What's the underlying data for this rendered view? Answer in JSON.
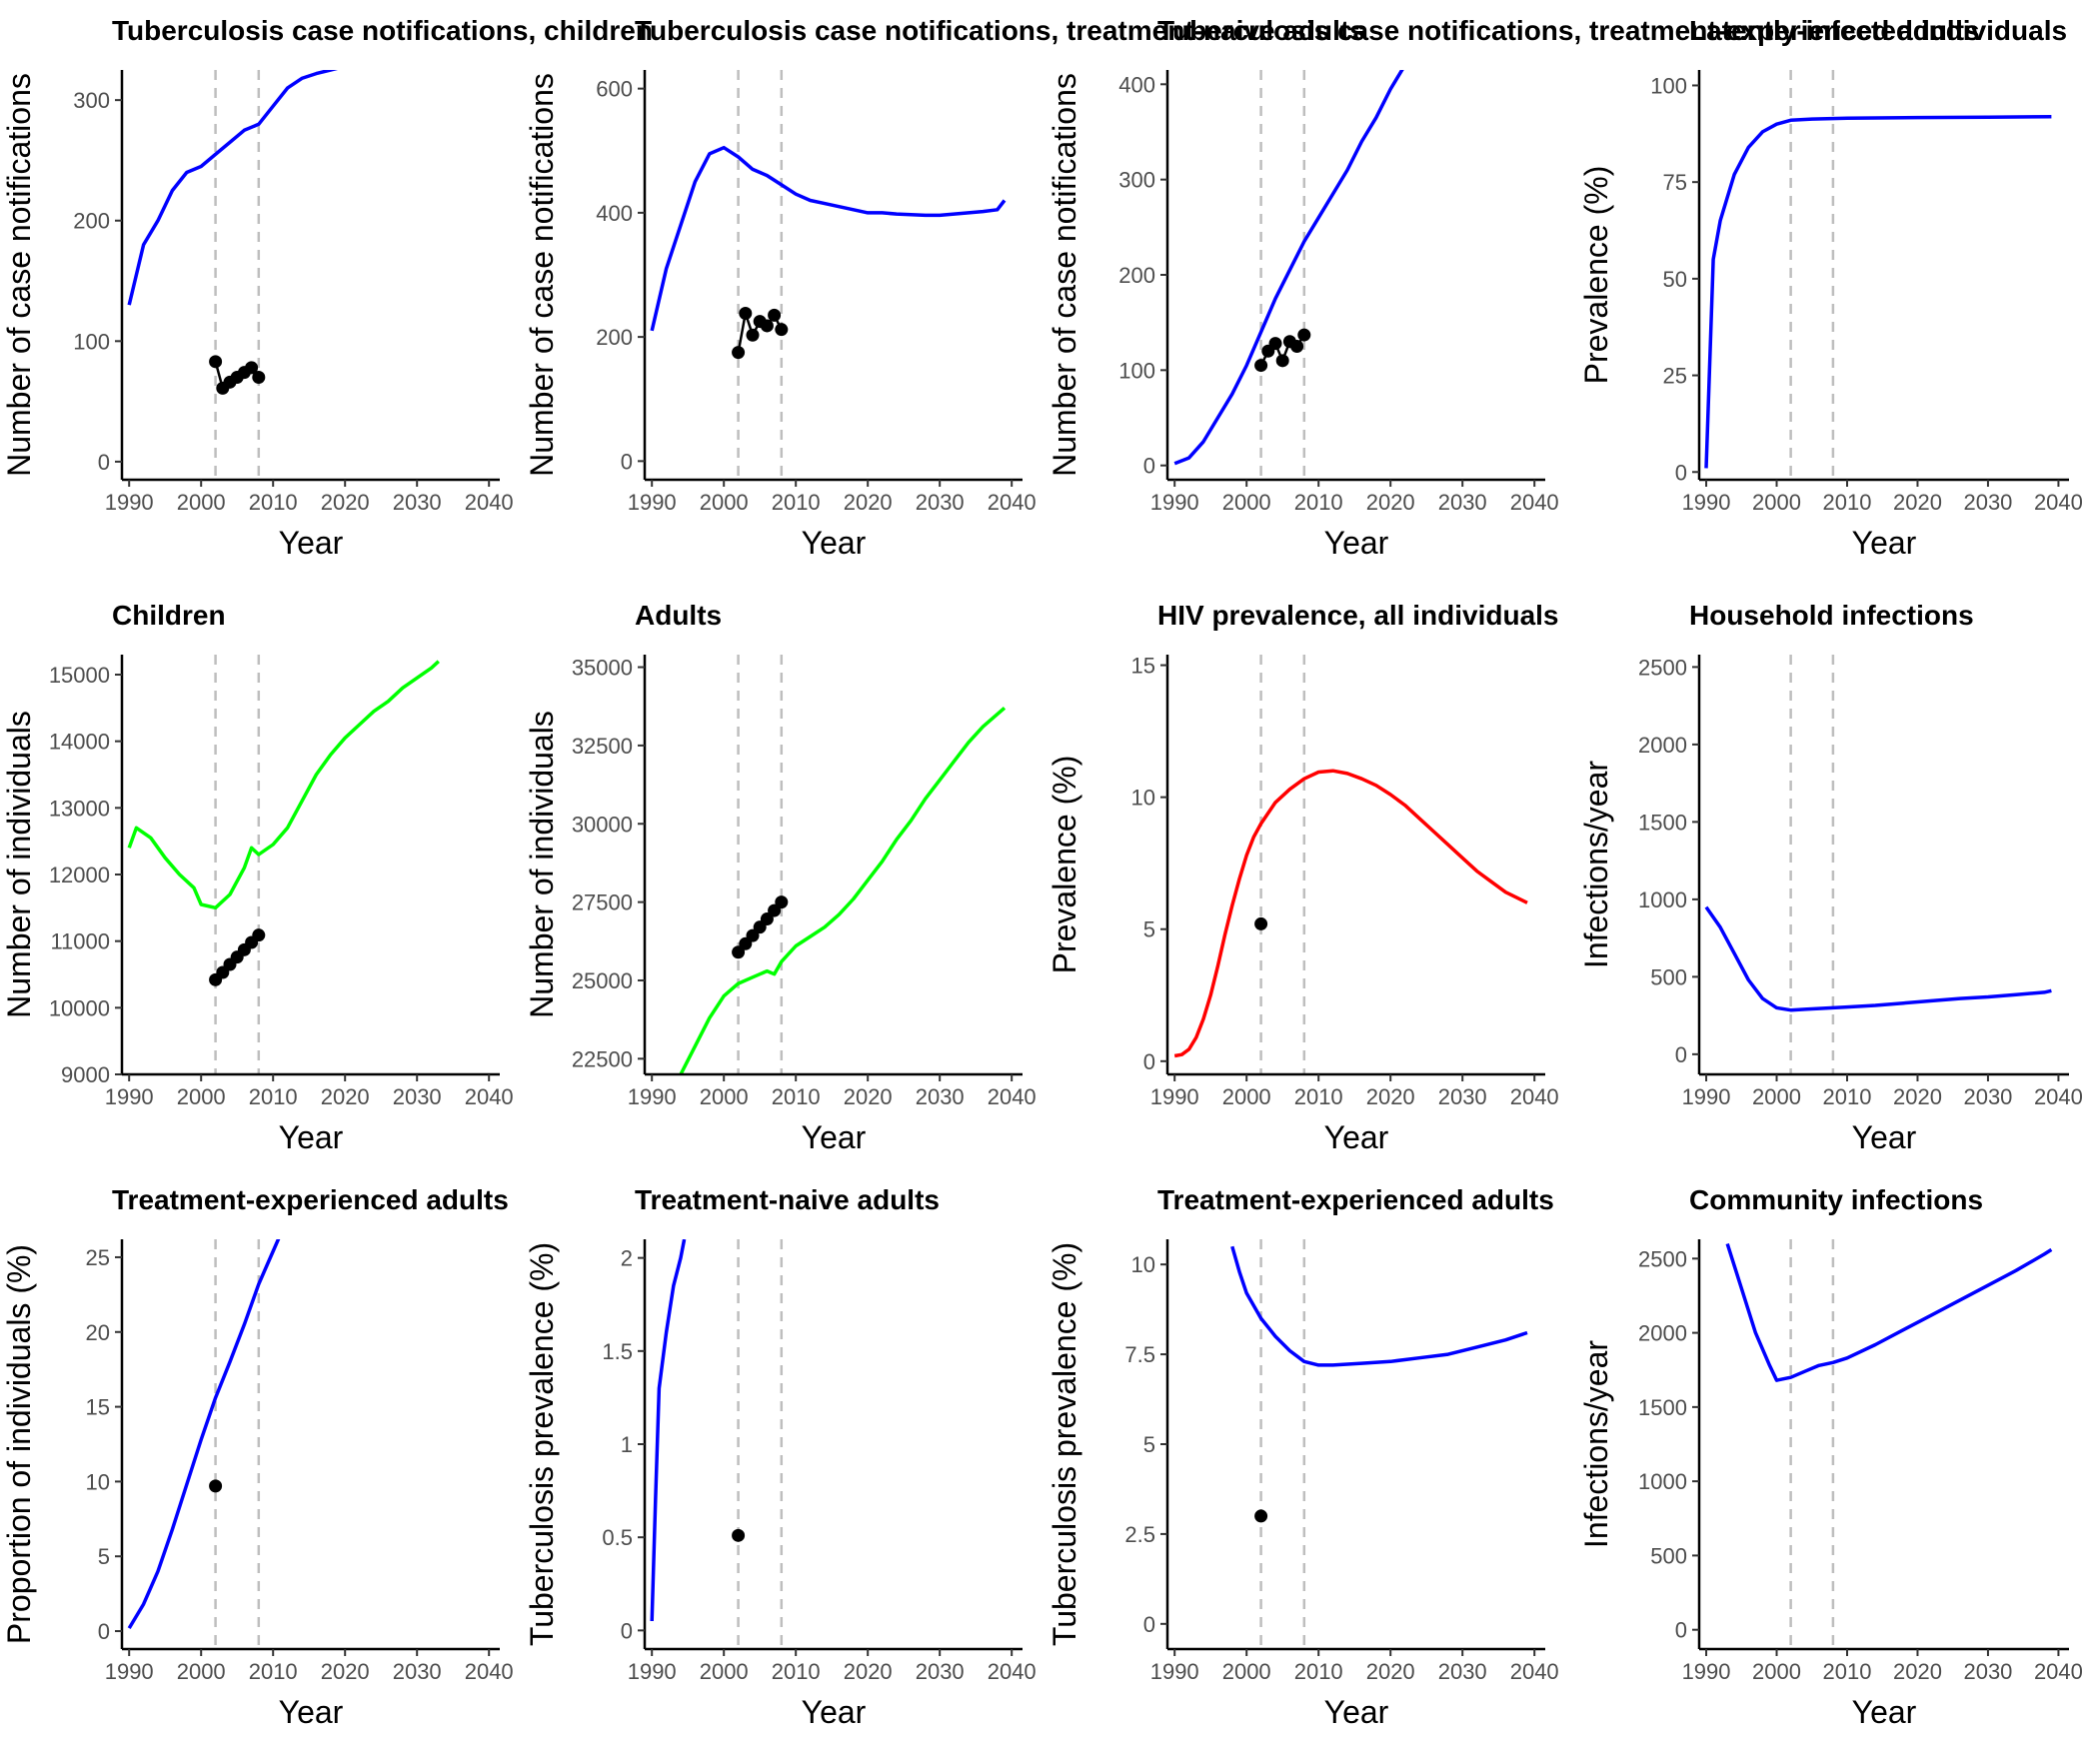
{
  "chart_data": [
    {
      "type": "line",
      "title": "Tuberculosis case notifications, children",
      "xlabel": "Year",
      "ylabel": "Number of case notifications",
      "xlim": [
        1990,
        2040
      ],
      "ylim": [
        0,
        300
      ],
      "xticks": [
        1990,
        2000,
        2010,
        2020,
        2030,
        2040
      ],
      "yticks": [
        0,
        100,
        200,
        300
      ],
      "vlines": [
        2002,
        2008
      ],
      "series_color": "#0000ff",
      "series": [
        {
          "x": [
            1990,
            1992,
            1994,
            1996,
            1998,
            2000,
            2002,
            2004,
            2006,
            2008,
            2010,
            2012,
            2014,
            2016,
            2018,
            2020,
            2022
          ],
          "y": [
            130,
            180,
            200,
            225,
            240,
            245,
            255,
            265,
            275,
            280,
            295,
            310,
            318,
            322,
            325,
            328,
            330
          ]
        }
      ],
      "observed": {
        "x": [
          2002,
          2003,
          2004,
          2005,
          2006,
          2007,
          2008
        ],
        "y": [
          83,
          61,
          66,
          70,
          74,
          78,
          70
        ]
      }
    },
    {
      "type": "line",
      "title": "Tuberculosis case notifications, treatment-naive adults",
      "xlabel": "Year",
      "ylabel": "Number of case notifications",
      "xlim": [
        1990,
        2040
      ],
      "ylim": [
        0,
        600
      ],
      "xticks": [
        1990,
        2000,
        2010,
        2020,
        2030,
        2040
      ],
      "yticks": [
        0,
        200,
        400,
        600
      ],
      "vlines": [
        2002,
        2008
      ],
      "series_color": "#0000ff",
      "series": [
        {
          "x": [
            1990,
            1992,
            1994,
            1996,
            1998,
            2000,
            2002,
            2004,
            2006,
            2008,
            2010,
            2012,
            2014,
            2016,
            2018,
            2020,
            2022,
            2024,
            2026,
            2028,
            2030,
            2032,
            2034,
            2036,
            2038,
            2039
          ],
          "y": [
            210,
            310,
            380,
            450,
            495,
            505,
            490,
            470,
            460,
            445,
            430,
            420,
            415,
            410,
            405,
            400,
            400,
            398,
            397,
            396,
            396,
            398,
            400,
            402,
            405,
            420
          ]
        }
      ],
      "observed": {
        "x": [
          2002,
          2003,
          2004,
          2005,
          2006,
          2007,
          2008
        ],
        "y": [
          175,
          238,
          203,
          225,
          218,
          235,
          212
        ]
      }
    },
    {
      "type": "line",
      "title": "Tuberculosis case notifications, treatment-experienced adults",
      "xlabel": "Year",
      "ylabel": "Number of case notifications",
      "xlim": [
        1990,
        2040
      ],
      "ylim": [
        0,
        400
      ],
      "xticks": [
        1990,
        2000,
        2010,
        2020,
        2030,
        2040
      ],
      "yticks": [
        0,
        100,
        200,
        300,
        400
      ],
      "vlines": [
        2002,
        2008
      ],
      "series_color": "#0000ff",
      "series": [
        {
          "x": [
            1990,
            1992,
            1994,
            1996,
            1998,
            2000,
            2002,
            2004,
            2006,
            2008,
            2010,
            2012,
            2014,
            2016,
            2018,
            2020,
            2022,
            2023
          ],
          "y": [
            2,
            8,
            25,
            50,
            75,
            105,
            140,
            175,
            205,
            235,
            260,
            285,
            310,
            340,
            365,
            395,
            420,
            430
          ]
        }
      ],
      "observed": {
        "x": [
          2002,
          2003,
          2004,
          2005,
          2006,
          2007,
          2008
        ],
        "y": [
          105,
          120,
          128,
          110,
          130,
          125,
          137
        ]
      }
    },
    {
      "type": "line",
      "title": "Latently-infected individuals",
      "xlabel": "Year",
      "ylabel": "Prevalence (%)",
      "xlim": [
        1990,
        2040
      ],
      "ylim": [
        0,
        100
      ],
      "xticks": [
        1990,
        2000,
        2010,
        2020,
        2030,
        2040
      ],
      "yticks": [
        0,
        25,
        50,
        75,
        100
      ],
      "vlines": [
        2002,
        2008
      ],
      "series_color": "#0000ff",
      "series": [
        {
          "x": [
            1990,
            1991,
            1992,
            1994,
            1996,
            1998,
            2000,
            2002,
            2005,
            2010,
            2020,
            2030,
            2039
          ],
          "y": [
            1,
            55,
            65,
            77,
            84,
            88,
            90,
            91,
            91.3,
            91.5,
            91.7,
            91.8,
            91.9
          ]
        }
      ],
      "observed": {
        "x": [],
        "y": []
      }
    },
    {
      "type": "line",
      "title": "Children",
      "xlabel": "Year",
      "ylabel": "Number of individuals",
      "xlim": [
        1990,
        2040
      ],
      "ylim": [
        9000,
        15000
      ],
      "xticks": [
        1990,
        2000,
        2010,
        2020,
        2030,
        2040
      ],
      "yticks": [
        9000,
        10000,
        11000,
        12000,
        13000,
        14000,
        15000
      ],
      "vlines": [
        2002,
        2008
      ],
      "series_color": "#00ff00",
      "series": [
        {
          "x": [
            1990,
            1991,
            1993,
            1995,
            1997,
            1999,
            2000,
            2002,
            2004,
            2006,
            2007,
            2008,
            2010,
            2012,
            2014,
            2016,
            2018,
            2020,
            2022,
            2024,
            2026,
            2028,
            2030,
            2032,
            2033
          ],
          "y": [
            12400,
            12700,
            12550,
            12250,
            12000,
            11800,
            11550,
            11500,
            11700,
            12100,
            12400,
            12300,
            12450,
            12700,
            13100,
            13500,
            13800,
            14050,
            14250,
            14450,
            14600,
            14800,
            14950,
            15100,
            15200
          ]
        }
      ],
      "observed": {
        "x": [
          2002,
          2003,
          2004,
          2005,
          2006,
          2007,
          2008
        ],
        "y": [
          10420,
          10530,
          10650,
          10760,
          10870,
          10980,
          11090
        ]
      }
    },
    {
      "type": "line",
      "title": "Adults",
      "xlabel": "Year",
      "ylabel": "Number of individuals",
      "xlim": [
        1990,
        2040
      ],
      "ylim": [
        22000,
        35000
      ],
      "xticks": [
        1990,
        2000,
        2010,
        2020,
        2030,
        2040
      ],
      "yticks": [
        22500,
        25000,
        27500,
        30000,
        32500,
        35000
      ],
      "vlines": [
        2002,
        2008
      ],
      "series_color": "#00ff00",
      "series": [
        {
          "x": [
            1994,
            1996,
            1998,
            2000,
            2002,
            2004,
            2006,
            2007,
            2008,
            2010,
            2012,
            2014,
            2016,
            2018,
            2020,
            2022,
            2024,
            2026,
            2028,
            2030,
            2032,
            2034,
            2036,
            2038,
            2039
          ],
          "y": [
            22000,
            22900,
            23800,
            24500,
            24900,
            25100,
            25300,
            25200,
            25600,
            26100,
            26400,
            26700,
            27100,
            27600,
            28200,
            28800,
            29500,
            30100,
            30800,
            31400,
            32000,
            32600,
            33100,
            33500,
            33700
          ]
        }
      ],
      "observed": {
        "x": [
          2002,
          2003,
          2004,
          2005,
          2006,
          2007,
          2008
        ],
        "y": [
          25900,
          26170,
          26430,
          26700,
          26960,
          27230,
          27500
        ]
      }
    },
    {
      "type": "line",
      "title": "HIV prevalence, all individuals",
      "xlabel": "Year",
      "ylabel": "Prevalence (%)",
      "xlim": [
        1990,
        2040
      ],
      "ylim": [
        0,
        15
      ],
      "xticks": [
        1990,
        2000,
        2010,
        2020,
        2030,
        2040
      ],
      "yticks": [
        0,
        5,
        10,
        15
      ],
      "vlines": [
        2002,
        2008
      ],
      "series_color": "#ff0000",
      "series": [
        {
          "x": [
            1990,
            1991,
            1992,
            1993,
            1994,
            1995,
            1996,
            1997,
            1998,
            1999,
            2000,
            2001,
            2002,
            2004,
            2006,
            2008,
            2010,
            2012,
            2014,
            2016,
            2018,
            2020,
            2022,
            2024,
            2026,
            2028,
            2030,
            2032,
            2034,
            2036,
            2039
          ],
          "y": [
            0.2,
            0.25,
            0.45,
            0.9,
            1.6,
            2.5,
            3.6,
            4.8,
            5.9,
            6.9,
            7.8,
            8.5,
            9.0,
            9.8,
            10.3,
            10.7,
            10.95,
            11.0,
            10.9,
            10.7,
            10.45,
            10.1,
            9.7,
            9.2,
            8.7,
            8.2,
            7.7,
            7.2,
            6.8,
            6.4,
            6.0
          ]
        }
      ],
      "observed": {
        "x": [
          2002
        ],
        "y": [
          5.2
        ]
      }
    },
    {
      "type": "line",
      "title": "Household infections",
      "xlabel": "Year",
      "ylabel": "Infections/year",
      "xlim": [
        1990,
        2040
      ],
      "ylim": [
        0,
        2500
      ],
      "xticks": [
        1990,
        2000,
        2010,
        2020,
        2030,
        2040
      ],
      "yticks": [
        0,
        500,
        1000,
        1500,
        2000,
        2500
      ],
      "vlines": [
        2002,
        2008
      ],
      "series_color": "#0000ff",
      "series": [
        {
          "x": [
            1990,
            1992,
            1994,
            1996,
            1998,
            2000,
            2002,
            2004,
            2006,
            2008,
            2010,
            2014,
            2018,
            2022,
            2026,
            2030,
            2034,
            2038,
            2039
          ],
          "y": [
            950,
            820,
            650,
            480,
            360,
            300,
            285,
            290,
            295,
            300,
            305,
            315,
            330,
            345,
            360,
            370,
            385,
            400,
            410
          ]
        }
      ],
      "observed": {
        "x": [],
        "y": []
      }
    },
    {
      "type": "line",
      "title": "Treatment-experienced adults",
      "xlabel": "Year",
      "ylabel": "Proportion of individuals (%)",
      "xlim": [
        1990,
        2040
      ],
      "ylim": [
        0,
        25
      ],
      "xticks": [
        1990,
        2000,
        2010,
        2020,
        2030,
        2040
      ],
      "yticks": [
        0,
        5,
        10,
        15,
        20,
        25
      ],
      "vlines": [
        2002,
        2008
      ],
      "series_color": "#0000ff",
      "series": [
        {
          "x": [
            1990,
            1992,
            1994,
            1996,
            1998,
            2000,
            2002,
            2004,
            2006,
            2008,
            2010,
            2011
          ],
          "y": [
            0.2,
            1.8,
            4.0,
            6.8,
            9.8,
            12.8,
            15.6,
            18.0,
            20.5,
            23.2,
            25.4,
            26.5
          ]
        }
      ],
      "observed": {
        "x": [
          2002
        ],
        "y": [
          9.7
        ]
      }
    },
    {
      "type": "line",
      "title": "Treatment-naive adults",
      "xlabel": "Year",
      "ylabel": "Tuberculosis prevalence (%)",
      "xlim": [
        1990,
        2040
      ],
      "ylim": [
        0,
        2
      ],
      "xticks": [
        1990,
        2000,
        2010,
        2020,
        2030,
        2040
      ],
      "yticks": [
        0.0,
        0.5,
        1.0,
        1.5,
        2.0
      ],
      "vlines": [
        2002,
        2008
      ],
      "series_color": "#0000ff",
      "series": [
        {
          "x": [
            1990,
            1990.5,
            1991,
            1992,
            1993,
            1994,
            1994.5
          ],
          "y": [
            0.05,
            0.7,
            1.3,
            1.6,
            1.85,
            2.0,
            2.1
          ]
        }
      ],
      "observed": {
        "x": [
          2002
        ],
        "y": [
          0.51
        ]
      }
    },
    {
      "type": "line",
      "title": "Treatment-experienced adults",
      "xlabel": "Year",
      "ylabel": "Tuberculosis prevalence (%)",
      "xlim": [
        1990,
        2040
      ],
      "ylim": [
        0,
        10
      ],
      "xticks": [
        1990,
        2000,
        2010,
        2020,
        2030,
        2040
      ],
      "yticks": [
        0.0,
        2.5,
        5.0,
        7.5,
        10.0
      ],
      "vlines": [
        2002,
        2008
      ],
      "series_color": "#0000ff",
      "series": [
        {
          "x": [
            1998,
            1999,
            2000,
            2002,
            2004,
            2006,
            2008,
            2010,
            2012,
            2016,
            2020,
            2024,
            2028,
            2032,
            2036,
            2039
          ],
          "y": [
            10.5,
            9.8,
            9.2,
            8.5,
            8.0,
            7.6,
            7.3,
            7.2,
            7.2,
            7.25,
            7.3,
            7.4,
            7.5,
            7.7,
            7.9,
            8.1
          ]
        }
      ],
      "observed": {
        "x": [
          2002
        ],
        "y": [
          3.0
        ]
      }
    },
    {
      "type": "line",
      "title": "Community infections",
      "xlabel": "Year",
      "ylabel": "Infections/year",
      "xlim": [
        1990,
        2040
      ],
      "ylim": [
        0,
        2500
      ],
      "xticks": [
        1990,
        2000,
        2010,
        2020,
        2030,
        2040
      ],
      "yticks": [
        0,
        500,
        1000,
        1500,
        2000,
        2500
      ],
      "vlines": [
        2002,
        2008
      ],
      "series_color": "#0000ff",
      "series": [
        {
          "x": [
            1993,
            1995,
            1997,
            1999,
            2000,
            2002,
            2004,
            2006,
            2008,
            2010,
            2014,
            2018,
            2022,
            2026,
            2030,
            2034,
            2038,
            2039
          ],
          "y": [
            2600,
            2300,
            2000,
            1780,
            1680,
            1700,
            1740,
            1780,
            1800,
            1830,
            1920,
            2020,
            2120,
            2220,
            2320,
            2420,
            2530,
            2560
          ]
        }
      ],
      "observed": {
        "x": [],
        "y": []
      }
    }
  ]
}
